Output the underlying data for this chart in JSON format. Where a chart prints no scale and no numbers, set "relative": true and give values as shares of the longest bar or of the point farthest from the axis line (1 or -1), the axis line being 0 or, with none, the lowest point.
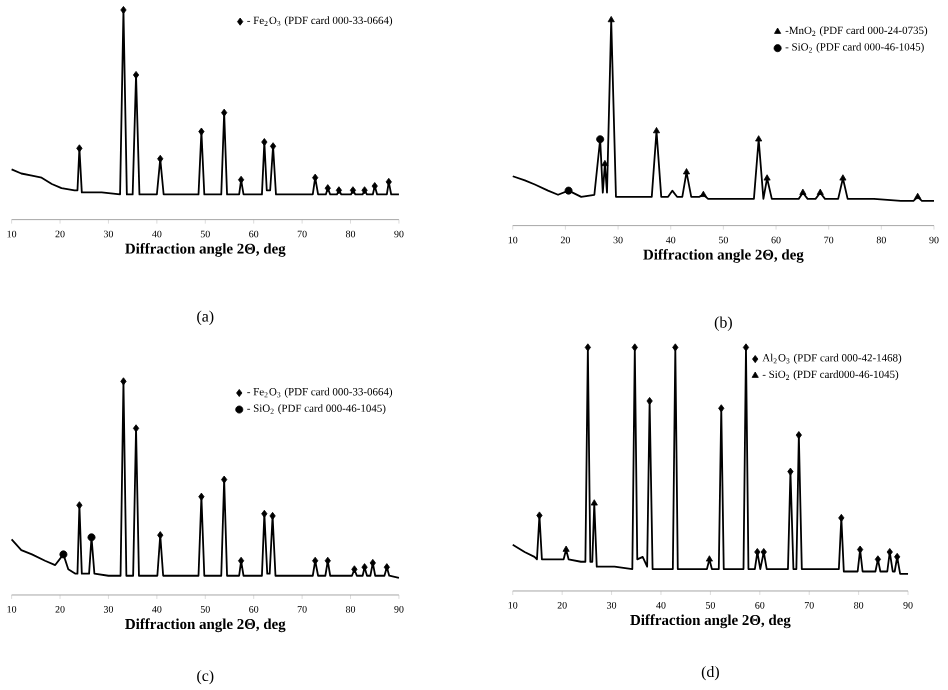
{
  "chart_data": [
    {
      "type": "line",
      "relative": true,
      "xlabel": "Diffraction angle 2Θ, deg",
      "xlim": [
        10,
        90
      ],
      "xticks": [
        10,
        20,
        30,
        40,
        50,
        60,
        70,
        80,
        90
      ],
      "tick_labels": "x",
      "legend": "top right",
      "annotations": [
        "(a)"
      ],
      "series": [
        {
          "color": "#000000",
          "x": [
            10,
            12,
            14.2,
            16.2,
            18.3,
            20.3,
            23,
            23.6,
            24.0,
            24.5,
            28.6,
            32.4,
            33.1,
            33.8,
            35.0,
            35.7,
            36.4,
            40.0,
            40.7,
            41.4,
            45.7,
            48.6,
            49.2,
            49.8,
            53.3,
            53.9,
            54.5,
            57.0,
            57.4,
            57.9,
            61.7,
            62.2,
            62.7,
            63.4,
            64.0,
            64.6,
            70.1,
            72.2,
            72.7,
            73.3,
            74.9,
            75.3,
            75.8,
            77.2,
            77.6,
            78.1,
            80.1,
            80.5,
            81.0,
            82.5,
            82.9,
            83.4,
            84.6,
            85.0,
            85.5,
            87.5,
            87.9,
            88.4,
            90
          ],
          "values": [
            0.24,
            0.22,
            0.21,
            0.2,
            0.17,
            0.15,
            0.14,
            0.14,
            0.34,
            0.13,
            0.13,
            0.12,
            1.0,
            0.12,
            0.12,
            0.69,
            0.12,
            0.12,
            0.29,
            0.12,
            0.12,
            0.12,
            0.42,
            0.12,
            0.12,
            0.51,
            0.12,
            0.12,
            0.19,
            0.12,
            0.12,
            0.37,
            0.14,
            0.14,
            0.35,
            0.12,
            0.12,
            0.12,
            0.2,
            0.12,
            0.12,
            0.15,
            0.12,
            0.12,
            0.14,
            0.12,
            0.12,
            0.14,
            0.12,
            0.12,
            0.14,
            0.12,
            0.12,
            0.16,
            0.12,
            0.12,
            0.18,
            0.12,
            0.12
          ]
        },
        {
          "type": "scatter",
          "name": "- Fe$_{2}$O$_{3}$ (PDF card 000-33-0664)",
          "color": "#000000",
          "marker": "diamond",
          "x": [
            24.0,
            33.1,
            35.7,
            40.7,
            49.2,
            53.9,
            57.4,
            62.2,
            64.0,
            72.7,
            75.3,
            77.6,
            80.5,
            82.9,
            85.0,
            87.9
          ],
          "values": [
            0.34,
            1.0,
            0.69,
            0.29,
            0.42,
            0.51,
            0.19,
            0.37,
            0.35,
            0.2,
            0.15,
            0.14,
            0.14,
            0.14,
            0.16,
            0.18
          ]
        }
      ]
    },
    {
      "type": "line",
      "relative": true,
      "xlabel": "Diffraction angle 2Θ, deg",
      "xlim": [
        10,
        90
      ],
      "xticks": [
        10,
        20,
        30,
        40,
        50,
        60,
        70,
        80,
        90
      ],
      "tick_labels": "x",
      "legend": "top right",
      "annotations": [
        "(b)"
      ],
      "series": [
        {
          "color": "#000000",
          "x": [
            10,
            12.3,
            14.2,
            16.7,
            18.6,
            20.6,
            23,
            25.5,
            26.6,
            27.1,
            27.5,
            27.9,
            28.7,
            29.6,
            33,
            36.4,
            37.3,
            38.2,
            39.5,
            40.3,
            41.2,
            42.2,
            43.0,
            43.9,
            45.4,
            46.2,
            47.1,
            55.8,
            56.7,
            57.6,
            58.3,
            59.2,
            64.3,
            65.1,
            66.0,
            67.5,
            68.4,
            69.3,
            71.8,
            72.7,
            73.6,
            78.6,
            83.7,
            86.1,
            86.9,
            87.7,
            90
          ],
          "values": [
            0.24,
            0.22,
            0.2,
            0.17,
            0.15,
            0.17,
            0.14,
            0.15,
            0.42,
            0.16,
            0.3,
            0.16,
            1.0,
            0.14,
            0.14,
            0.14,
            0.46,
            0.14,
            0.14,
            0.17,
            0.14,
            0.14,
            0.26,
            0.14,
            0.14,
            0.15,
            0.13,
            0.13,
            0.42,
            0.13,
            0.23,
            0.13,
            0.13,
            0.16,
            0.13,
            0.13,
            0.16,
            0.13,
            0.13,
            0.23,
            0.13,
            0.13,
            0.12,
            0.12,
            0.14,
            0.12,
            0.12
          ]
        },
        {
          "type": "scatter",
          "name": "-MnO$_{2}$ (PDF card 000-24-0735)",
          "color": "#000000",
          "marker": "triangle",
          "x": [
            27.5,
            28.7,
            37.3,
            43.0,
            46.2,
            56.7,
            58.3,
            65.1,
            68.4,
            72.7,
            86.9
          ],
          "values": [
            0.3,
            1.0,
            0.46,
            0.26,
            0.15,
            0.42,
            0.23,
            0.16,
            0.16,
            0.23,
            0.14
          ]
        },
        {
          "type": "scatter",
          "name": "- SiO$_{2}$ (PDF card 000-46-1045)",
          "color": "#000000",
          "marker": "circle",
          "x": [
            20.6,
            26.6
          ],
          "values": [
            0.17,
            0.42
          ]
        }
      ]
    },
    {
      "type": "line",
      "relative": true,
      "xlabel": "Diffraction angle 2Θ, deg",
      "xlim": [
        10,
        90
      ],
      "xticks": [
        10,
        20,
        30,
        40,
        50,
        60,
        70,
        80,
        90
      ],
      "tick_labels": "x",
      "legend": "top right",
      "annotations": [
        "(c)"
      ],
      "series": [
        {
          "color": "#000000",
          "x": [
            10,
            12,
            14.2,
            16.9,
            19,
            20.7,
            21.7,
            23.1,
            23.6,
            24.0,
            24.5,
            26.0,
            26.5,
            27.1,
            30,
            32.5,
            33.1,
            33.7,
            35.1,
            35.7,
            36.3,
            40.1,
            40.7,
            41.3,
            45.7,
            48.6,
            49.2,
            49.8,
            53.3,
            53.9,
            54.5,
            57.0,
            57.4,
            57.9,
            61.7,
            62.2,
            62.8,
            63.3,
            63.9,
            64.5,
            70.1,
            72.2,
            72.7,
            73.3,
            74.8,
            75.3,
            75.8,
            80.3,
            80.8,
            81.3,
            82.5,
            82.9,
            83.4,
            84.1,
            84.6,
            85.1,
            87.0,
            87.5,
            88.0,
            90
          ],
          "values": [
            0.26,
            0.21,
            0.19,
            0.16,
            0.14,
            0.19,
            0.12,
            0.1,
            0.1,
            0.42,
            0.1,
            0.1,
            0.27,
            0.1,
            0.09,
            0.09,
            1.0,
            0.09,
            0.09,
            0.78,
            0.09,
            0.09,
            0.28,
            0.09,
            0.09,
            0.09,
            0.46,
            0.09,
            0.09,
            0.54,
            0.09,
            0.09,
            0.16,
            0.09,
            0.09,
            0.38,
            0.1,
            0.1,
            0.37,
            0.09,
            0.09,
            0.09,
            0.16,
            0.09,
            0.09,
            0.16,
            0.09,
            0.09,
            0.12,
            0.09,
            0.09,
            0.13,
            0.09,
            0.09,
            0.15,
            0.09,
            0.09,
            0.13,
            0.09,
            0.08
          ]
        },
        {
          "type": "scatter",
          "name": "- Fe$_{2}$O$_{3}$ (PDF card 000-33-0664)",
          "color": "#000000",
          "marker": "diamond",
          "x": [
            24.0,
            33.1,
            35.7,
            40.7,
            49.2,
            53.9,
            57.4,
            62.2,
            63.9,
            72.7,
            75.3,
            80.8,
            82.9,
            84.6,
            87.5
          ],
          "values": [
            0.42,
            1.0,
            0.78,
            0.28,
            0.46,
            0.54,
            0.16,
            0.38,
            0.37,
            0.16,
            0.16,
            0.12,
            0.13,
            0.15,
            0.13
          ]
        },
        {
          "type": "scatter",
          "name": "- SiO$_{2}$ (PDF card 000-46-1045)",
          "color": "#000000",
          "marker": "circle",
          "x": [
            20.7,
            26.5
          ],
          "values": [
            0.19,
            0.27
          ]
        }
      ]
    },
    {
      "type": "line",
      "relative": true,
      "xlabel": "Diffraction angle 2Θ, deg",
      "xlim": [
        10,
        90
      ],
      "xticks": [
        10,
        20,
        30,
        40,
        50,
        60,
        70,
        80,
        90
      ],
      "tick_labels": "x",
      "legend": "top right",
      "annotations": [
        "(d)"
      ],
      "series": [
        {
          "color": "#000000",
          "x": [
            10,
            12.4,
            14.4,
            14.9,
            15.4,
            15.9,
            18.5,
            20.3,
            20.8,
            21.3,
            23.8,
            24.7,
            25.2,
            25.7,
            26.1,
            26.5,
            27.0,
            30.6,
            34.2,
            34.7,
            35.2,
            36.3,
            37.2,
            37.7,
            38.3,
            42.4,
            42.9,
            43.4,
            49.3,
            49.8,
            50.3,
            51.7,
            52.2,
            52.7,
            56.7,
            57.2,
            57.7,
            59.0,
            59.5,
            60.1,
            60.8,
            61.4,
            65.7,
            66.2,
            66.8,
            67.4,
            67.9,
            68.5,
            76.0,
            76.5,
            77.0,
            79.8,
            80.3,
            80.8,
            83.4,
            83.9,
            84.4,
            85.8,
            86.3,
            86.9,
            87.3,
            87.8,
            88.4,
            90
          ],
          "values": [
            0.19,
            0.16,
            0.14,
            0.13,
            0.31,
            0.13,
            0.13,
            0.13,
            0.17,
            0.13,
            0.12,
            0.12,
            1.0,
            0.12,
            0.12,
            0.36,
            0.1,
            0.1,
            0.09,
            1.0,
            0.13,
            0.14,
            0.1,
            0.78,
            0.09,
            0.09,
            1.0,
            0.09,
            0.09,
            0.13,
            0.09,
            0.09,
            0.75,
            0.09,
            0.09,
            1.0,
            0.09,
            0.09,
            0.16,
            0.09,
            0.16,
            0.09,
            0.09,
            0.49,
            0.09,
            0.09,
            0.64,
            0.09,
            0.09,
            0.3,
            0.08,
            0.08,
            0.17,
            0.08,
            0.08,
            0.13,
            0.08,
            0.08,
            0.16,
            0.08,
            0.08,
            0.14,
            0.07,
            0.07
          ]
        },
        {
          "type": "scatter",
          "name": "Al$_{2}$O$_{3}$ (PDF card 000-42-1468)",
          "color": "#000000",
          "marker": "diamond",
          "x": [
            15.4,
            25.2,
            34.7,
            37.7,
            42.9,
            52.2,
            57.2,
            59.5,
            60.8,
            66.2,
            67.9,
            76.5,
            80.3,
            83.9,
            86.3,
            87.8
          ],
          "values": [
            0.31,
            1.0,
            1.0,
            0.78,
            1.0,
            0.75,
            1.0,
            0.16,
            0.16,
            0.49,
            0.64,
            0.3,
            0.17,
            0.13,
            0.16,
            0.14
          ]
        },
        {
          "type": "scatter",
          "name": "- SiO$_{2}$ (PDF card000-46-1045)",
          "color": "#000000",
          "marker": "triangle",
          "x": [
            20.8,
            26.5,
            49.8
          ],
          "values": [
            0.17,
            0.36,
            0.13
          ]
        }
      ]
    }
  ]
}
